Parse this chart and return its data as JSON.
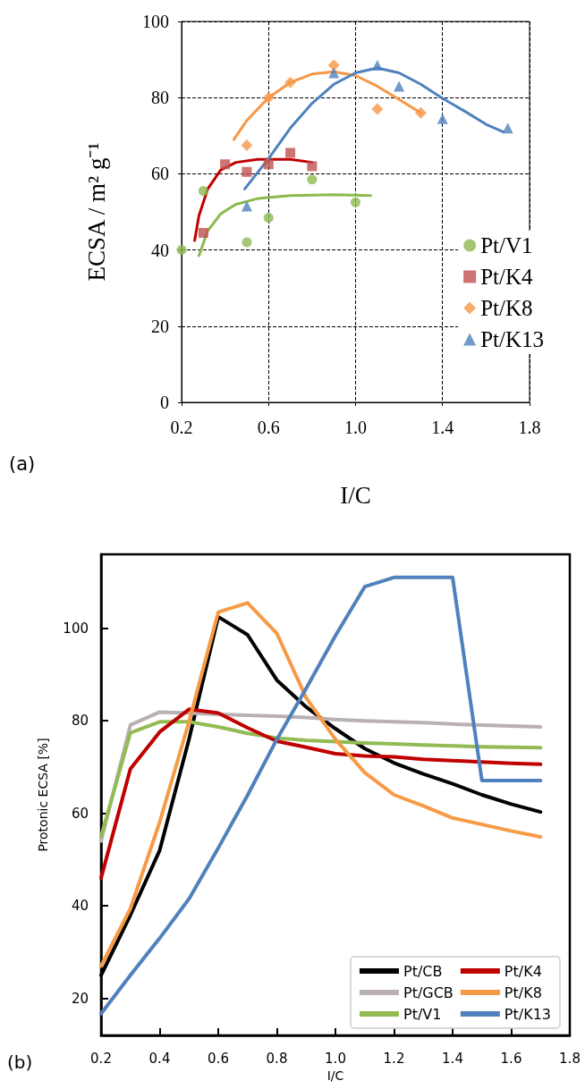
{
  "chart_data": [
    {
      "type": "scatter",
      "xlabel": "I/C",
      "ylabel": "ECSA / m² g⁻¹",
      "annotations": [
        "(a)"
      ],
      "xlim": [
        0.2,
        1.8
      ],
      "xticks": [
        0.2,
        0.6,
        {
          "value": 1,
          "label": "1.0"
        },
        1.4,
        1.8
      ],
      "ylim": [
        0,
        100
      ],
      "yticks": [
        0,
        20,
        40,
        60,
        80,
        100
      ],
      "grid": true,
      "legend": "right",
      "series": [
        {
          "name": "Pt/V1",
          "color": "#8cb94f",
          "marker": "circle",
          "x": [
            0.2,
            0.3,
            0.5,
            0.6,
            0.8,
            1.0
          ],
          "values": [
            40,
            55.5,
            42,
            48.5,
            58.5,
            52.5
          ]
        },
        {
          "name": "Pt/K4",
          "color": "#c0504d",
          "marker": "square",
          "x": [
            0.3,
            0.4,
            0.5,
            0.6,
            0.7,
            0.8
          ],
          "values": [
            44.5,
            62.5,
            60.5,
            62.5,
            65.5,
            62
          ]
        },
        {
          "name": "Pt/K8",
          "color": "#f79646",
          "marker": "diamond",
          "x": [
            0.5,
            0.6,
            0.7,
            0.9,
            1.1,
            1.3
          ],
          "values": [
            67.5,
            80,
            84,
            88.5,
            77,
            76
          ]
        },
        {
          "name": "Pt/K13",
          "color": "#4f81bd",
          "marker": "triangle",
          "x": [
            0.5,
            0.9,
            1.1,
            1.2,
            1.4,
            1.7
          ],
          "values": [
            51.5,
            86.5,
            88.5,
            83,
            74.5,
            72
          ]
        },
        {
          "type": "line",
          "color": "#8cb94f",
          "marker": "none",
          "x": [
            0.28,
            0.32,
            0.38,
            0.45,
            0.55,
            0.7,
            0.9,
            1.07
          ],
          "values": [
            38.5,
            45,
            49.5,
            52,
            53.5,
            54.3,
            54.5,
            54.3
          ]
        },
        {
          "type": "line",
          "color": "#c00000",
          "marker": "none",
          "x": [
            0.26,
            0.28,
            0.32,
            0.38,
            0.45,
            0.55,
            0.7,
            0.8
          ],
          "values": [
            42.5,
            49,
            56,
            61,
            63,
            63.8,
            63.8,
            63
          ]
        },
        {
          "type": "line",
          "color": "#f79646",
          "marker": "none",
          "x": [
            0.44,
            0.5,
            0.6,
            0.7,
            0.8,
            0.9,
            1.0,
            1.1,
            1.2,
            1.3
          ],
          "values": [
            69,
            74,
            80,
            84,
            86.2,
            86.8,
            85.8,
            83,
            79.5,
            76
          ]
        },
        {
          "type": "line",
          "color": "#4f81bd",
          "marker": "none",
          "x": [
            0.49,
            0.6,
            0.7,
            0.8,
            0.9,
            1.0,
            1.1,
            1.2,
            1.3,
            1.4,
            1.5,
            1.6,
            1.68
          ],
          "values": [
            56,
            64,
            72,
            78.5,
            83.5,
            86.5,
            87.8,
            86.5,
            83.5,
            79.8,
            76.5,
            73,
            71
          ]
        }
      ]
    },
    {
      "type": "line",
      "xlabel": "I/C",
      "ylabel": "Protonic ECSA [%]",
      "annotations": [
        "(b)"
      ],
      "x": [
        0.2,
        0.3,
        0.4,
        0.5,
        0.6,
        0.7,
        0.8,
        0.9,
        1.0,
        1.1,
        1.2,
        1.3,
        1.4,
        1.5,
        1.6,
        1.7
      ],
      "xlim": [
        0.2,
        1.8
      ],
      "xticks": [
        0.2,
        0.4,
        0.6,
        0.8,
        {
          "value": 1,
          "label": "1.0"
        },
        1.2,
        1.4,
        1.6,
        1.8
      ],
      "ylim": [
        12,
        116
      ],
      "yticks": [
        20,
        40,
        60,
        80,
        100
      ],
      "grid": false,
      "legend": "bottom right",
      "marker": "none",
      "series": [
        {
          "name": "Pt/CB",
          "color": "#000000",
          "values": [
            25,
            38,
            52,
            76,
            102.5,
            98.6,
            88.8,
            83,
            78.3,
            74,
            70.9,
            68.5,
            66.4,
            64,
            62,
            60.3
          ]
        },
        {
          "name": "Pt/GCB",
          "color": "#b8b0b3",
          "values": [
            54,
            79.1,
            81.9,
            81.7,
            81.4,
            81.2,
            81,
            80.7,
            80.3,
            80,
            79.8,
            79.6,
            79.3,
            79.1,
            78.9,
            78.7
          ]
        },
        {
          "name": "Pt/V1",
          "color": "#92bb54",
          "values": [
            55,
            77.4,
            79.8,
            79.8,
            78.7,
            77.3,
            76.3,
            75.8,
            75.5,
            75.2,
            75,
            74.8,
            74.6,
            74.4,
            74.3,
            74.2
          ]
        },
        {
          "name": "Pt/K4",
          "color": "#c00000",
          "values": [
            46,
            69.6,
            77.6,
            82.5,
            81.7,
            78.5,
            75.6,
            74.3,
            72.9,
            72.4,
            72.2,
            71.7,
            71.4,
            71.1,
            70.8,
            70.6
          ]
        },
        {
          "name": "Pt/K8",
          "color": "#f79a45",
          "values": [
            27,
            39.4,
            58.1,
            79.8,
            103.5,
            105.5,
            98.9,
            85,
            76,
            68.8,
            64,
            61.6,
            59,
            57.6,
            56.2,
            54.9
          ]
        },
        {
          "name": "Pt/K13",
          "color": "#4f81bd",
          "values": [
            16.7,
            25,
            33,
            41.5,
            52.5,
            63.9,
            76,
            87,
            98.4,
            109,
            111,
            111,
            111,
            67.1,
            67.1,
            67.1
          ]
        }
      ]
    }
  ]
}
